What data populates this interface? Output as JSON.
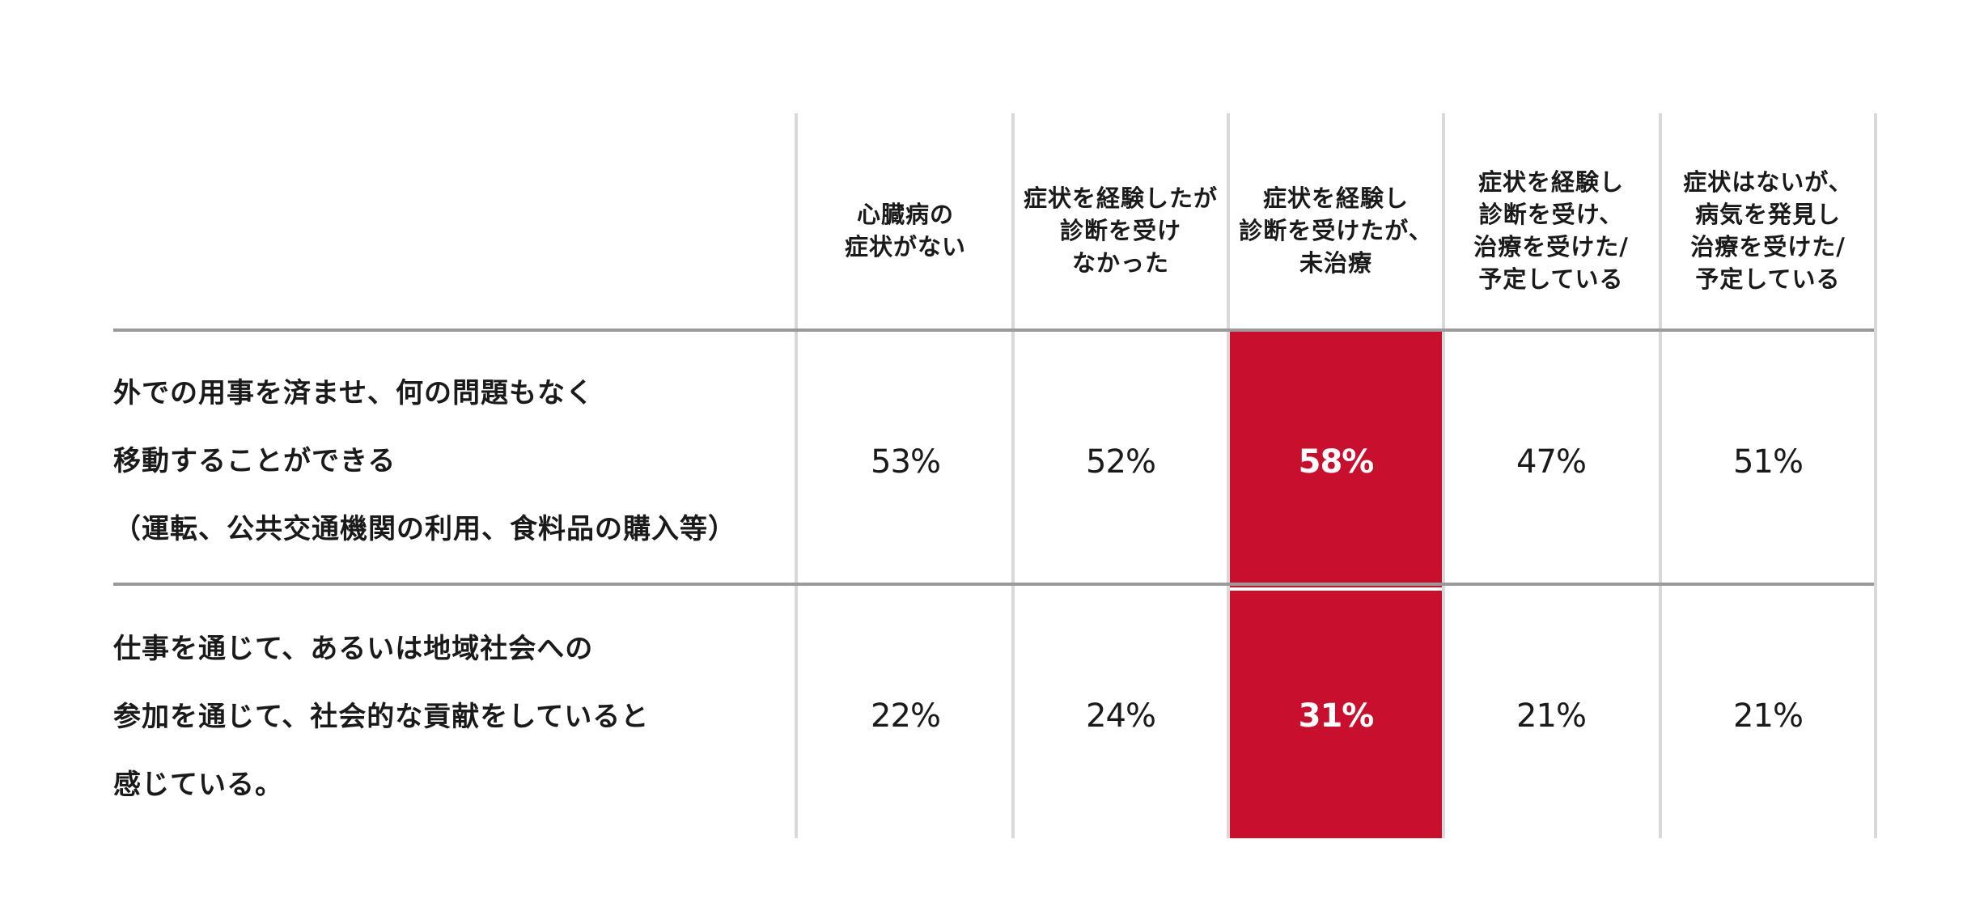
{
  "colors": {
    "highlight_fill": "#c8102e",
    "highlight_text": "#ffffff",
    "text": "#1a1a1a",
    "row_rule": "#9a9a9a",
    "column_rule": "#d9d9d9"
  },
  "chart_data": {
    "type": "table",
    "highlight_column": 2,
    "columns": [
      [
        "心臓病の",
        "症状がない"
      ],
      [
        "症状を経験したが",
        "診断を受け",
        "なかった"
      ],
      [
        "症状を経験し",
        "診断を受けたが、",
        "未治療"
      ],
      [
        "症状を経験し",
        "診断を受け、",
        "治療を受けた/",
        "予定している"
      ],
      [
        "症状はないが、",
        "病気を発見し",
        "治療を受けた/",
        "予定している"
      ]
    ],
    "rows": [
      {
        "label": [
          "外での用事を済ませ、何の問題もなく",
          "移動することができる",
          "（運転、公共交通機関の利用、食料品の購入等）"
        ],
        "display": [
          "53%",
          "52%",
          "58%",
          "47%",
          "51%"
        ],
        "values": [
          53,
          52,
          58,
          47,
          51
        ]
      },
      {
        "label": [
          "仕事を通じて、あるいは地域社会への",
          "参加を通じて、社会的な貢献をしていると",
          "感じている。"
        ],
        "display": [
          "22%",
          "24%",
          "31%",
          "21%",
          "21%"
        ],
        "values": [
          22,
          24,
          31,
          21,
          21
        ]
      }
    ]
  }
}
